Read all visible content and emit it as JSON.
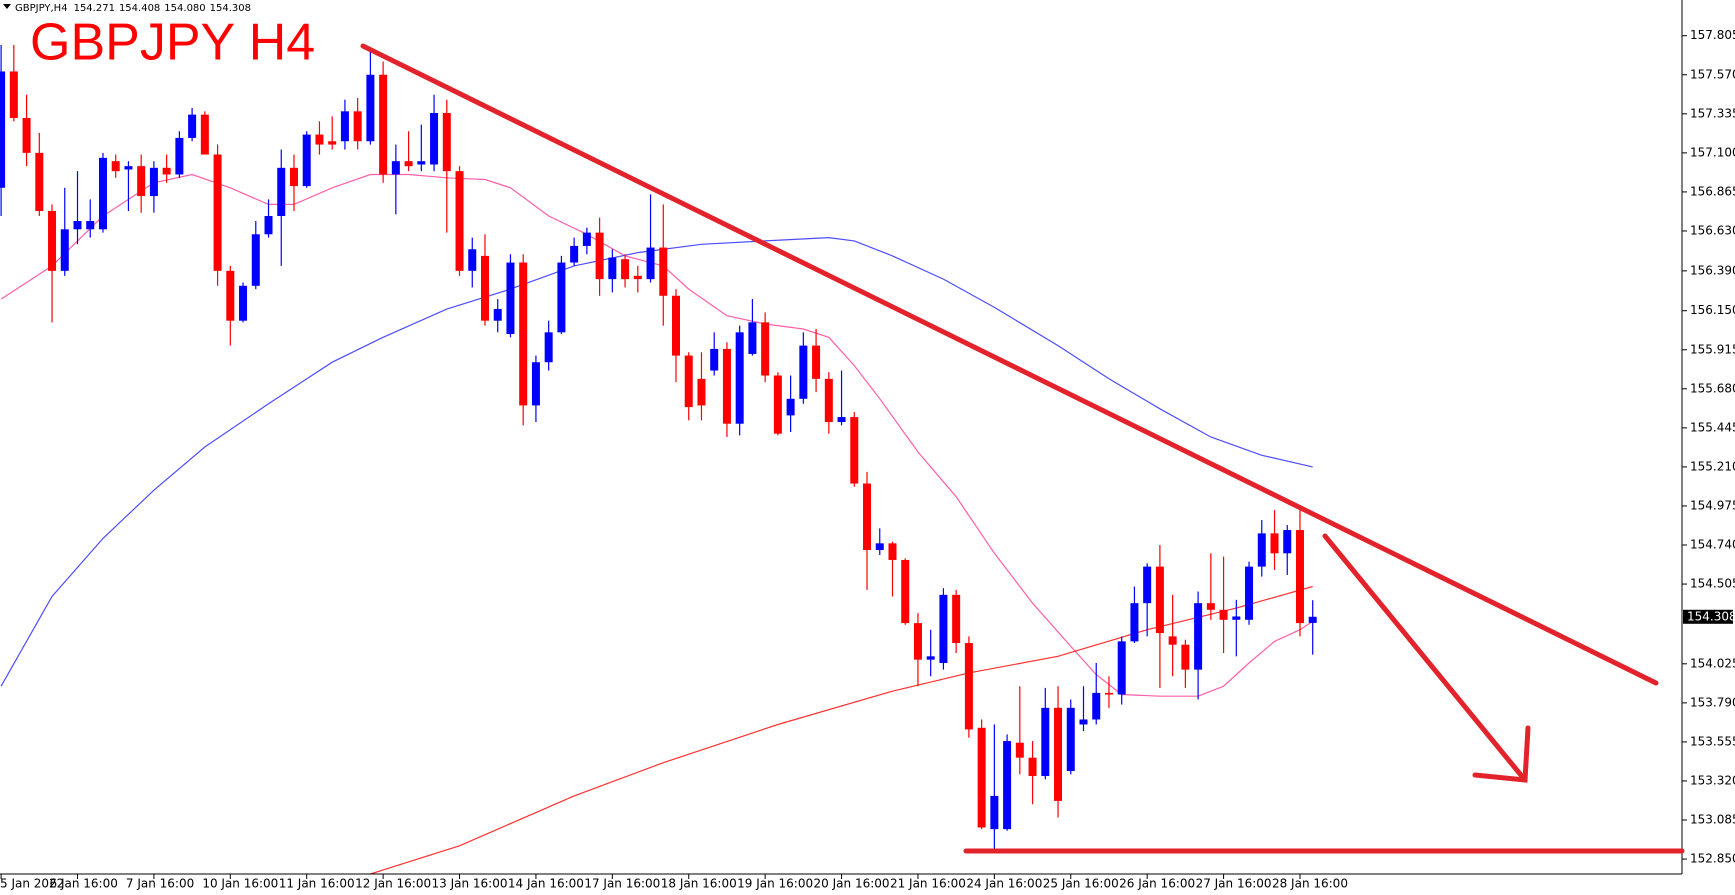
{
  "chart_data": {
    "type": "candlestick",
    "title": "GBPJPY H4",
    "quote": {
      "symbol": "GBPJPY,H4",
      "values": [
        "154.271",
        "154.408",
        "154.080",
        "154.308"
      ]
    },
    "current_price": {
      "value": 154.308,
      "label": "154.308"
    },
    "up_color": "#0000ff",
    "down_color": "#ff0000",
    "xlim": [
      0,
      132
    ],
    "ylim": [
      152.76,
      158.02
    ],
    "xticks": [
      {
        "value": 0,
        "label": "5 Jan 2022"
      },
      {
        "value": 6,
        "label": "6 Jan 16:00"
      },
      {
        "value": 12,
        "label": "7 Jan 16:00"
      },
      {
        "value": 18,
        "label": "10 Jan 16:00"
      },
      {
        "value": 24,
        "label": "11 Jan 16:00"
      },
      {
        "value": 30,
        "label": "12 Jan 16:00"
      },
      {
        "value": 36,
        "label": "13 Jan 16:00"
      },
      {
        "value": 42,
        "label": "14 Jan 16:00"
      },
      {
        "value": 48,
        "label": "17 Jan 16:00"
      },
      {
        "value": 54,
        "label": "18 Jan 16:00"
      },
      {
        "value": 60,
        "label": "19 Jan 16:00"
      },
      {
        "value": 66,
        "label": "20 Jan 16:00"
      },
      {
        "value": 72,
        "label": "21 Jan 16:00"
      },
      {
        "value": 78,
        "label": "24 Jan 16:00"
      },
      {
        "value": 84,
        "label": "25 Jan 16:00"
      },
      {
        "value": 90,
        "label": "26 Jan 16:00"
      },
      {
        "value": 96,
        "label": "27 Jan 16:00"
      },
      {
        "value": 102,
        "label": "28 Jan 16:00"
      }
    ],
    "yticks": [
      157.805,
      {
        "value": 157.57,
        "label": "157.570"
      },
      157.335,
      {
        "value": 157.1,
        "label": "157.100"
      },
      156.865,
      {
        "value": 156.63,
        "label": "156.630"
      },
      {
        "value": 156.39,
        "label": "156.390"
      },
      {
        "value": 156.15,
        "label": "156.150"
      },
      155.915,
      {
        "value": 155.68,
        "label": "155.680"
      },
      155.445,
      {
        "value": 155.21,
        "label": "155.210"
      },
      154.975,
      {
        "value": 154.74,
        "label": "154.740"
      },
      154.505,
      154.025,
      {
        "value": 153.79,
        "label": "153.790"
      },
      153.555,
      {
        "value": 153.32,
        "label": "153.320"
      },
      153.085,
      {
        "value": 152.85,
        "label": "152.850"
      }
    ],
    "candles": [
      [
        156.89,
        157.75,
        156.72,
        157.59
      ],
      [
        157.59,
        157.75,
        157.29,
        157.31
      ],
      [
        157.31,
        157.45,
        157.02,
        157.1
      ],
      [
        157.1,
        157.22,
        156.72,
        156.75
      ],
      [
        156.75,
        156.79,
        156.08,
        156.39
      ],
      [
        156.39,
        156.89,
        156.36,
        156.64
      ],
      [
        156.64,
        156.99,
        156.55,
        156.69
      ],
      [
        156.64,
        156.82,
        156.59,
        156.69
      ],
      [
        156.64,
        157.1,
        156.62,
        157.07
      ],
      [
        157.05,
        157.09,
        156.95,
        156.99
      ],
      [
        157.0,
        157.05,
        156.75,
        157.02
      ],
      [
        157.02,
        157.09,
        156.74,
        156.84
      ],
      [
        156.84,
        157.05,
        156.74,
        157.01
      ],
      [
        157.01,
        157.09,
        156.92,
        156.97
      ],
      [
        156.97,
        157.23,
        156.95,
        157.19
      ],
      [
        157.19,
        157.37,
        157.17,
        157.33
      ],
      [
        157.33,
        157.35,
        157.09,
        157.09
      ],
      [
        157.09,
        157.15,
        156.3,
        156.39
      ],
      [
        156.39,
        156.42,
        155.94,
        156.09
      ],
      [
        156.09,
        156.32,
        156.08,
        156.3
      ],
      [
        156.3,
        156.69,
        156.28,
        156.61
      ],
      [
        156.61,
        156.82,
        156.59,
        156.72
      ],
      [
        156.72,
        157.12,
        156.42,
        157.01
      ],
      [
        157.01,
        157.09,
        156.75,
        156.9
      ],
      [
        156.9,
        157.23,
        156.89,
        157.21
      ],
      [
        157.21,
        157.29,
        157.09,
        157.15
      ],
      [
        157.17,
        157.32,
        157.12,
        157.15
      ],
      [
        157.17,
        157.42,
        157.12,
        157.35
      ],
      [
        157.35,
        157.43,
        157.12,
        157.17
      ],
      [
        157.17,
        157.71,
        157.15,
        157.57
      ],
      [
        157.57,
        157.65,
        156.92,
        156.97
      ],
      [
        156.97,
        157.15,
        156.73,
        157.05
      ],
      [
        157.05,
        157.23,
        156.99,
        157.02
      ],
      [
        157.03,
        157.27,
        156.99,
        157.05
      ],
      [
        157.03,
        157.45,
        156.99,
        157.34
      ],
      [
        157.34,
        157.42,
        156.62,
        156.99
      ],
      [
        156.99,
        157.02,
        156.36,
        156.39
      ],
      [
        156.39,
        156.59,
        156.29,
        156.52
      ],
      [
        156.48,
        156.61,
        156.06,
        156.09
      ],
      [
        156.09,
        156.22,
        156.02,
        156.16
      ],
      [
        156.01,
        156.49,
        155.99,
        156.44
      ],
      [
        156.44,
        156.49,
        155.46,
        155.58
      ],
      [
        155.58,
        155.88,
        155.48,
        155.84
      ],
      [
        155.84,
        156.09,
        155.79,
        156.02
      ],
      [
        156.02,
        156.48,
        156.01,
        156.44
      ],
      [
        156.44,
        156.59,
        156.42,
        156.54
      ],
      [
        156.54,
        156.65,
        156.49,
        156.62
      ],
      [
        156.62,
        156.71,
        156.24,
        156.34
      ],
      [
        156.34,
        156.52,
        156.26,
        156.47
      ],
      [
        156.46,
        156.49,
        156.29,
        156.34
      ],
      [
        156.36,
        156.42,
        156.26,
        156.34
      ],
      [
        156.34,
        156.85,
        156.32,
        156.53
      ],
      [
        156.53,
        156.79,
        156.06,
        156.24
      ],
      [
        156.24,
        156.28,
        155.72,
        155.88
      ],
      [
        155.88,
        155.9,
        155.49,
        155.57
      ],
      [
        155.74,
        155.9,
        155.49,
        155.58
      ],
      [
        155.79,
        156.02,
        155.76,
        155.92
      ],
      [
        155.92,
        155.96,
        155.39,
        155.47
      ],
      [
        155.47,
        156.06,
        155.4,
        156.02
      ],
      [
        155.89,
        156.22,
        155.88,
        156.08
      ],
      [
        156.08,
        156.14,
        155.72,
        155.76
      ],
      [
        155.76,
        155.78,
        155.4,
        155.41
      ],
      [
        155.52,
        155.76,
        155.42,
        155.62
      ],
      [
        155.62,
        156.02,
        155.59,
        155.94
      ],
      [
        155.94,
        156.04,
        155.66,
        155.74
      ],
      [
        155.74,
        155.78,
        155.41,
        155.48
      ],
      [
        155.48,
        155.79,
        155.46,
        155.51
      ],
      [
        155.51,
        155.54,
        155.09,
        155.11
      ],
      [
        155.11,
        155.18,
        154.47,
        154.71
      ],
      [
        154.71,
        154.84,
        154.68,
        154.75
      ],
      [
        154.75,
        154.76,
        154.43,
        154.65
      ],
      [
        154.65,
        154.66,
        154.26,
        154.27
      ],
      [
        154.27,
        154.33,
        153.89,
        154.05
      ],
      [
        154.05,
        154.23,
        153.95,
        154.07
      ],
      [
        154.03,
        154.48,
        153.99,
        154.44
      ],
      [
        154.44,
        154.47,
        154.09,
        154.15
      ],
      [
        154.15,
        154.19,
        153.58,
        153.63
      ],
      [
        153.64,
        153.69,
        153.03,
        153.04
      ],
      [
        153.03,
        153.66,
        152.91,
        153.23
      ],
      [
        153.03,
        153.6,
        153.02,
        153.56
      ],
      [
        153.55,
        153.89,
        153.36,
        153.46
      ],
      [
        153.46,
        153.56,
        153.18,
        153.35
      ],
      [
        153.35,
        153.88,
        153.33,
        153.76
      ],
      [
        153.76,
        153.89,
        153.1,
        153.2
      ],
      [
        153.38,
        153.81,
        153.36,
        153.76
      ],
      [
        153.66,
        153.89,
        153.62,
        153.69
      ],
      [
        153.69,
        154.03,
        153.66,
        153.85
      ],
      [
        153.85,
        153.95,
        153.76,
        153.84
      ],
      [
        153.84,
        154.19,
        153.78,
        154.16
      ],
      [
        154.16,
        154.49,
        154.15,
        154.39
      ],
      [
        154.39,
        154.63,
        154.19,
        154.61
      ],
      [
        154.61,
        154.74,
        153.88,
        154.21
      ],
      [
        154.19,
        154.44,
        153.95,
        154.14
      ],
      [
        154.14,
        154.17,
        153.88,
        153.99
      ],
      [
        153.99,
        154.46,
        153.81,
        154.39
      ],
      [
        154.39,
        154.69,
        154.29,
        154.35
      ],
      [
        154.35,
        154.67,
        154.09,
        154.29
      ],
      [
        154.29,
        154.41,
        154.07,
        154.31
      ],
      [
        154.29,
        154.64,
        154.26,
        154.61
      ],
      [
        154.61,
        154.89,
        154.55,
        154.81
      ],
      [
        154.81,
        154.95,
        154.59,
        154.69
      ],
      [
        154.69,
        154.86,
        154.56,
        154.83
      ],
      [
        154.83,
        154.95,
        154.19,
        154.27
      ],
      [
        154.271,
        154.408,
        154.08,
        154.308
      ]
    ],
    "overlays": [
      {
        "color": "#ff5fa8",
        "x": [
          0,
          4,
          8,
          12,
          15,
          18,
          21,
          23,
          26,
          29,
          32,
          35,
          38,
          40,
          43,
          46,
          49,
          52,
          54,
          57,
          60,
          63,
          65,
          67,
          69,
          72,
          75,
          78,
          81,
          84,
          86,
          88,
          91,
          94,
          96,
          98,
          100,
          102,
          103
        ],
        "values": [
          156.22,
          156.42,
          156.72,
          156.92,
          156.97,
          156.89,
          156.79,
          156.79,
          156.89,
          156.97,
          156.97,
          156.95,
          156.94,
          156.89,
          156.72,
          156.61,
          156.48,
          156.42,
          156.28,
          156.12,
          156.07,
          156.04,
          155.99,
          155.82,
          155.62,
          155.3,
          155.03,
          154.69,
          154.39,
          154.13,
          153.96,
          153.84,
          153.83,
          153.83,
          153.89,
          154.03,
          154.16,
          154.23,
          154.28
        ]
      },
      {
        "color": "#4d4dff",
        "x": [
          0,
          4,
          8,
          12,
          16,
          21,
          26,
          30,
          35,
          40,
          45,
          50,
          55,
          60,
          65,
          67,
          70,
          74,
          78,
          83,
          87,
          91,
          95,
          99,
          103
        ],
        "values": [
          153.89,
          154.43,
          154.78,
          155.07,
          155.33,
          155.59,
          155.84,
          155.99,
          156.16,
          156.28,
          156.42,
          156.5,
          156.55,
          156.57,
          156.59,
          156.57,
          156.48,
          156.34,
          156.17,
          155.94,
          155.74,
          155.56,
          155.39,
          155.28,
          155.21
        ]
      },
      {
        "color": "#ff3030",
        "x": [
          29,
          36,
          45,
          52,
          61,
          70,
          76,
          83,
          90,
          97,
          103
        ],
        "values": [
          152.76,
          152.93,
          153.23,
          153.43,
          153.66,
          153.86,
          153.97,
          154.07,
          154.23,
          154.36,
          154.49
        ]
      }
    ]
  }
}
